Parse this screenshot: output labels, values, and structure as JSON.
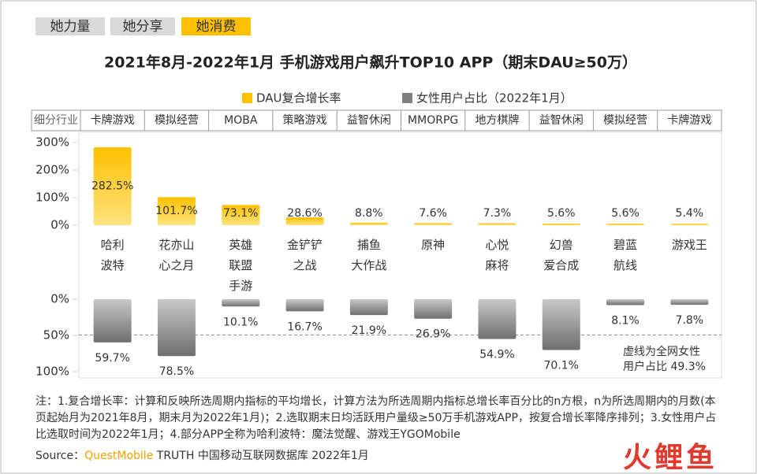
{
  "tabs": [
    "她力量",
    "她分享",
    "她消费"
  ],
  "active_tab": 2,
  "chart_data": {
    "type": "bar",
    "title": "2021年8月-2022年1月 手机游戏用户飙升TOP10 APP（期末DAU≥50万）",
    "industry_header": "细分行业",
    "industries": [
      "卡牌游戏",
      "模拟经营",
      "MOBA",
      "策略游戏",
      "益智休闲",
      "MMORPG",
      "地方棋牌",
      "益智休闲",
      "模拟经营",
      "卡牌游戏"
    ],
    "categories": [
      "哈利\n波特",
      "花亦山\n心之月",
      "英雄\n联盟\n手游",
      "金铲铲\n之战",
      "捕鱼\n大作战",
      "原神",
      "心悦\n麻将",
      "幻兽\n爱合成",
      "碧蓝\n航线",
      "游戏王"
    ],
    "series": [
      {
        "name": "DAU复合增长率",
        "color": "#ffc000",
        "values": [
          282.5,
          101.7,
          73.1,
          28.6,
          8.8,
          7.6,
          7.3,
          5.6,
          5.6,
          5.4
        ],
        "value_labels": [
          "282.5%",
          "101.7%",
          "73.1%",
          "28.6%",
          "8.8%",
          "7.6%",
          "7.3%",
          "5.6%",
          "5.6%",
          "5.4%"
        ]
      },
      {
        "name": "女性用户占比（2022年1月）",
        "color": "#7f7f7f",
        "axis": "y2",
        "values": [
          59.7,
          78.5,
          10.1,
          16.7,
          21.9,
          26.9,
          54.9,
          70.1,
          8.1,
          7.8
        ],
        "value_labels": [
          "59.7%",
          "78.5%",
          "10.1%",
          "16.7%",
          "21.9%",
          "26.9%",
          "54.9%",
          "70.1%",
          "8.1%",
          "7.8%"
        ]
      }
    ],
    "ylim": [
      0,
      300
    ],
    "yticks": [
      {
        "value": 0,
        "label": "0%"
      },
      {
        "value": 100,
        "label": "100%"
      },
      {
        "value": 200,
        "label": "200%"
      },
      {
        "value": 300,
        "label": "300%"
      }
    ],
    "y2lim": [
      0,
      100
    ],
    "y2ticks": [
      {
        "value": 0,
        "label": "0%"
      },
      {
        "value": 50,
        "label": "50%"
      },
      {
        "value": 100,
        "label": "100%"
      }
    ],
    "reference_line": {
      "value": 49.3,
      "label": "虚线为全网女性\n用户占比 49.3%"
    }
  },
  "note": "注：1.复合增长率：计算和反映所选周期内指标的平均增长，计算方法为所选周期内指标总增长率百分比的n方根，n为所选周期内的月数(本页起始月为2021年8月，期末月为2022年1月)；2.选取期末日均活跃用户量级≥50万手机游戏APP，按复合增长率降序排列；3.女性用户占比选取时间为2022年1月；4.部分APP全称为哈利波特：魔法觉醒、游戏王YGOMobile",
  "source": {
    "prefix": "Source：",
    "brand": "QuestMobile",
    "rest": " TRUTH 中国移动互联网数据库 2022年1月"
  },
  "logo": "火鲤鱼"
}
